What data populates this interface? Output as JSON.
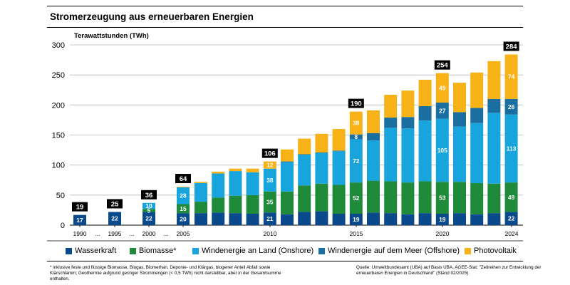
{
  "header": {
    "title": "Stromerzeugung aus erneuerbaren Energien"
  },
  "chart_data": {
    "type": "bar",
    "stacked": true,
    "title": "Stromerzeugung aus erneuerbaren Energien",
    "ylabel": "Terawattstunden (TWh)",
    "xlabel": "",
    "ylim": [
      0,
      300
    ],
    "yticks": [
      0,
      50,
      100,
      150,
      200,
      250,
      300
    ],
    "categories": [
      "1990",
      "1995",
      "2000",
      "2005",
      "2006",
      "2007",
      "2008",
      "2009",
      "2010",
      "2011",
      "2012",
      "2013",
      "2014",
      "2015",
      "2016",
      "2017",
      "2018",
      "2019",
      "2020",
      "2021",
      "2022",
      "2023",
      "2024"
    ],
    "x_tick_labels": [
      "1990",
      "…",
      "1995",
      "…",
      "2000",
      "…",
      "2005",
      "2010",
      "2015",
      "2020",
      "2024"
    ],
    "series": [
      {
        "name": "Wasserkraft",
        "color": "#0a4a8c",
        "values": [
          17,
          22,
          22,
          20,
          20,
          21,
          20,
          19,
          21,
          18,
          22,
          23,
          19,
          19,
          21,
          20,
          18,
          20,
          19,
          20,
          18,
          20,
          22
        ]
      },
      {
        "name": "Biomasse*",
        "color": "#1e8a3a",
        "values": [
          0,
          0,
          5,
          15,
          19,
          25,
          29,
          31,
          35,
          38,
          44,
          46,
          48,
          52,
          53,
          53,
          53,
          53,
          53,
          52,
          52,
          49,
          49
        ]
      },
      {
        "name": "Windenergie an Land (Onshore)",
        "color": "#18a4dc",
        "values": [
          0,
          0,
          10,
          28,
          31,
          40,
          41,
          38,
          38,
          49,
          51,
          51,
          56,
          72,
          67,
          89,
          90,
          101,
          105,
          92,
          100,
          118,
          113
        ]
      },
      {
        "name": "Windenergie auf dem Meer (Offshore)",
        "color": "#1a6fa0",
        "values": [
          0,
          0,
          0,
          0,
          0,
          0,
          0,
          0,
          0,
          1,
          1,
          1,
          1,
          8,
          12,
          17,
          19,
          24,
          27,
          24,
          25,
          23,
          26
        ]
      },
      {
        "name": "Photovoltaik",
        "color": "#f7b217",
        "values": [
          0,
          0,
          0,
          1,
          2,
          3,
          4,
          6,
          12,
          20,
          26,
          31,
          36,
          38,
          38,
          38,
          44,
          44,
          49,
          49,
          59,
          63,
          74
        ]
      }
    ],
    "totals": [
      {
        "category": "1990",
        "value": 19
      },
      {
        "category": "1995",
        "value": 25
      },
      {
        "category": "2000",
        "value": 36
      },
      {
        "category": "2005",
        "value": 64
      },
      {
        "category": "2010",
        "value": 106
      },
      {
        "category": "2015",
        "value": 190
      },
      {
        "category": "2020",
        "value": 254
      },
      {
        "category": "2024",
        "value": 284
      }
    ],
    "segment_labels": [
      {
        "category": "1990",
        "series": 0,
        "text": "17"
      },
      {
        "category": "1995",
        "series": 0,
        "text": "22"
      },
      {
        "category": "2000",
        "series": 0,
        "text": "22"
      },
      {
        "category": "2000",
        "series": 1,
        "text": "5"
      },
      {
        "category": "2000",
        "series": 2,
        "text": "10"
      },
      {
        "category": "2005",
        "series": 0,
        "text": "20"
      },
      {
        "category": "2005",
        "series": 1,
        "text": "15"
      },
      {
        "category": "2005",
        "series": 2,
        "text": "28"
      },
      {
        "category": "2010",
        "series": 0,
        "text": "21"
      },
      {
        "category": "2010",
        "series": 1,
        "text": "35"
      },
      {
        "category": "2010",
        "series": 2,
        "text": "38"
      },
      {
        "category": "2010",
        "series": 4,
        "text": "12"
      },
      {
        "category": "2015",
        "series": 0,
        "text": "19"
      },
      {
        "category": "2015",
        "series": 1,
        "text": "52"
      },
      {
        "category": "2015",
        "series": 2,
        "text": "72"
      },
      {
        "category": "2015",
        "series": 3,
        "text": "8"
      },
      {
        "category": "2015",
        "series": 4,
        "text": "38"
      },
      {
        "category": "2020",
        "series": 0,
        "text": "19"
      },
      {
        "category": "2020",
        "series": 1,
        "text": "53"
      },
      {
        "category": "2020",
        "series": 2,
        "text": "105"
      },
      {
        "category": "2020",
        "series": 3,
        "text": "27"
      },
      {
        "category": "2020",
        "series": 4,
        "text": "49"
      },
      {
        "category": "2024",
        "series": 0,
        "text": "22"
      },
      {
        "category": "2024",
        "series": 1,
        "text": "49"
      },
      {
        "category": "2024",
        "series": 2,
        "text": "113"
      },
      {
        "category": "2024",
        "series": 3,
        "text": "26"
      },
      {
        "category": "2024",
        "series": 4,
        "text": "74"
      }
    ],
    "legend_position": "bottom"
  },
  "footnote": "* inklusive feste und flüssige Biomasse, Biogas, Biomethan, Deponie- und Klärgas, biogener Anteil Abfall sowie Klärschlamm; Geothermie aufgrund geringer Strommengen (< 0,5 TWh) nicht darstellbar, aber in der Gesamtsumme enthalten.",
  "source": "Quelle: Umweltbundesamt (UBA) auf Basis UBA, AGEE-Stat: \"Zeitreihen zur Entwicklung der erneuerbaren Energien in Deutschland\" (Stand 02/2025)"
}
